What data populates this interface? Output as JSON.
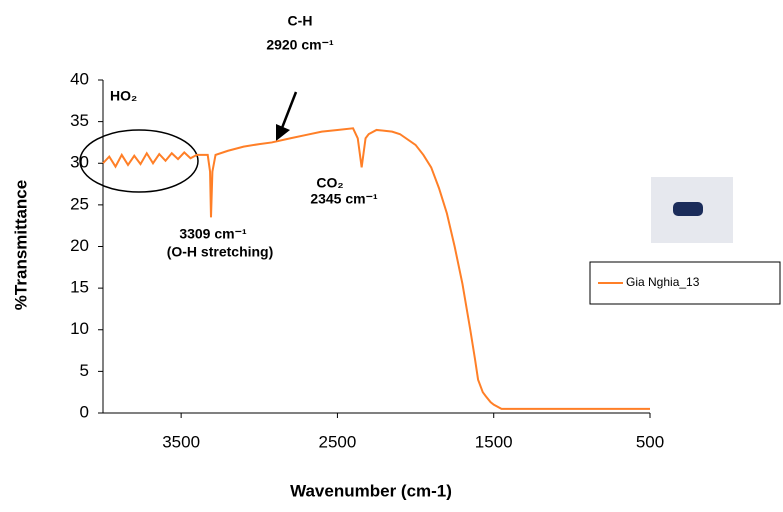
{
  "chart_data": {
    "type": "line",
    "x_label": "Wavenumber (cm-1)",
    "y_label": "%Transmittance",
    "xlim": [
      4000,
      500
    ],
    "ylim": [
      0,
      40
    ],
    "xticks": [
      3500,
      2500,
      1500,
      500
    ],
    "yticks": [
      0,
      5,
      10,
      15,
      20,
      25,
      30,
      35,
      40
    ],
    "legend": "right",
    "annotations": [
      "HO₂",
      "C-H",
      "2920 cm⁻¹",
      "CO₂",
      "2345 cm⁻¹",
      "3309 cm⁻¹",
      "(O-H stretching)"
    ],
    "series": [
      {
        "name": "Gia Nghia_13",
        "color": "#ff7f27",
        "x": [
          4000,
          3960,
          3920,
          3880,
          3840,
          3800,
          3760,
          3720,
          3680,
          3640,
          3600,
          3560,
          3520,
          3480,
          3440,
          3400,
          3360,
          3330,
          3315,
          3309,
          3300,
          3280,
          3200,
          3100,
          3000,
          2920,
          2800,
          2700,
          2600,
          2500,
          2400,
          2370,
          2345,
          2320,
          2300,
          2250,
          2150,
          2100,
          2000,
          1950,
          1900,
          1850,
          1800,
          1750,
          1700,
          1650,
          1620,
          1600,
          1570,
          1550,
          1520,
          1500,
          1450,
          1000,
          500
        ],
        "values": [
          30,
          30.8,
          29.6,
          31,
          29.8,
          30.9,
          29.9,
          31.2,
          30,
          31.1,
          30.3,
          31.2,
          30.5,
          31.3,
          30.6,
          31,
          31,
          31,
          29,
          23.5,
          29,
          31,
          31.5,
          32,
          32.3,
          32.5,
          33,
          33.4,
          33.8,
          34,
          34.2,
          33,
          29.5,
          33,
          33.5,
          34,
          33.8,
          33.5,
          32.2,
          31,
          29.5,
          27,
          24,
          20,
          15.5,
          10,
          6.5,
          4,
          2.5,
          2,
          1.3,
          1,
          0.5,
          0.5,
          0.5
        ]
      }
    ]
  }
}
